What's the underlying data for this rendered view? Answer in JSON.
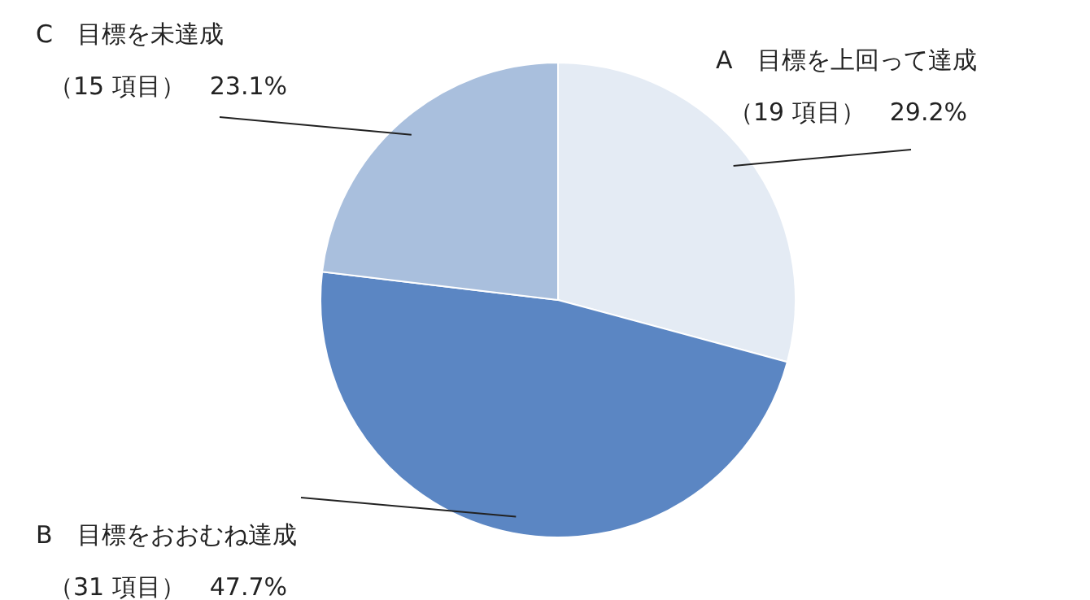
{
  "chart_data": {
    "type": "pie",
    "categories": [
      "A　目標を上回って達成",
      "B　目標をおおむね達成",
      "C　目標を未達成"
    ],
    "values": [
      29.2,
      47.7,
      23.1
    ],
    "colors": [
      "#e4ebf4",
      "#5b86c3",
      "#a9bfdd"
    ],
    "value_labels": [
      "（19 項目）　29.2%",
      "（31 項目）　47.7%",
      "（15 項目）　23.1%"
    ],
    "legend": false
  }
}
